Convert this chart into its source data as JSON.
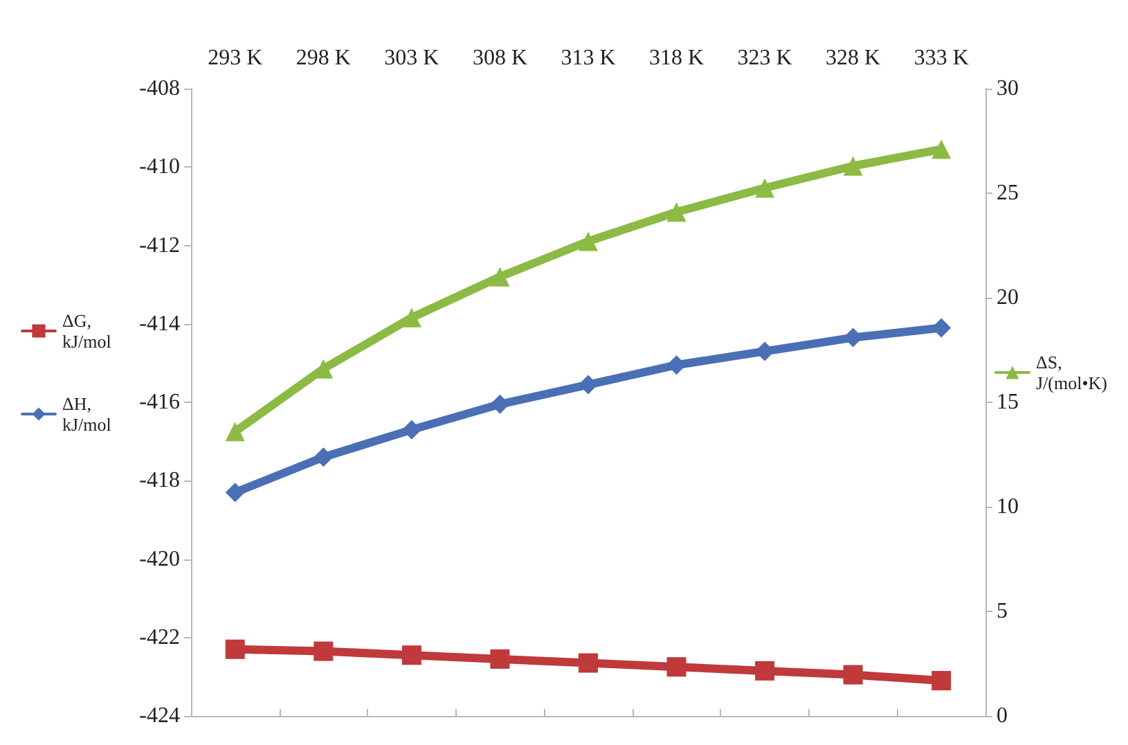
{
  "chart_data": {
    "type": "line",
    "categories": [
      "293 K",
      "298 K",
      "303 K",
      "308 K",
      "313 K",
      "318 K",
      "323 K",
      "328 K",
      "333 K"
    ],
    "series": [
      {
        "name": "ΔG, kJ/mol",
        "color": "#c0393b",
        "marker": "square",
        "values": [
          -422.3,
          -422.35,
          -422.45,
          -422.55,
          -422.65,
          -422.75,
          -422.85,
          -422.95,
          -423.1
        ]
      },
      {
        "name": "ΔH, kJ/mol",
        "color": "#4a6fb5",
        "marker": "diamond",
        "values": [
          -418.3,
          -417.4,
          -416.7,
          -416.05,
          -415.55,
          -415.05,
          -414.7,
          -414.35,
          -414.1
        ]
      },
      {
        "name": "ΔS, J/(mol•K)",
        "color": "#8cba44",
        "marker": "triangle",
        "axis": "y2",
        "values": [
          13.6,
          16.6,
          19.05,
          21.0,
          22.7,
          24.1,
          25.25,
          26.3,
          27.1
        ]
      }
    ],
    "ylim": [
      -424,
      -408
    ],
    "yticks": [
      -424,
      -422,
      -420,
      -418,
      -416,
      -414,
      -412,
      -410,
      -408
    ],
    "y2lim": [
      0,
      30
    ],
    "y2ticks": [
      0,
      5,
      10,
      15,
      20,
      25,
      30
    ],
    "grid": false,
    "legend": "left",
    "line_style": "solid"
  }
}
